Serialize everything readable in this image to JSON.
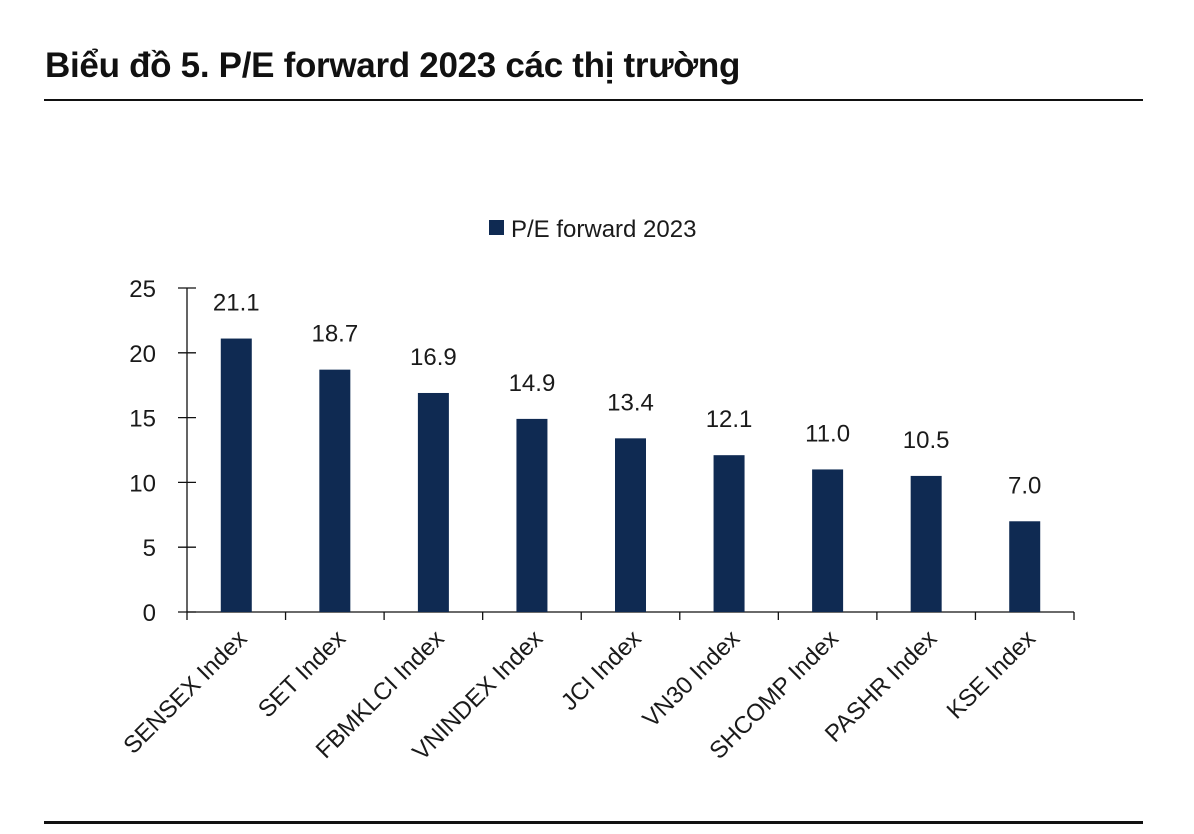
{
  "title": "Biểu đồ 5. P/E forward 2023 các thị trường",
  "chart_data": {
    "type": "bar",
    "title": "",
    "xlabel": "",
    "ylabel": "",
    "categories": [
      "SENSEX Index",
      "SET Index",
      "FBMKLCI Index",
      "VNINDEX Index",
      "JCI Index",
      "VN30 Index",
      "SHCOMP Index",
      "PASHR Index",
      "KSE Index"
    ],
    "series": [
      {
        "name": "P/E forward 2023",
        "values": [
          21.1,
          18.7,
          16.9,
          14.9,
          13.4,
          12.1,
          11.0,
          10.5,
          7.0
        ],
        "color": "#0f2a52"
      }
    ],
    "data_labels": [
      "21.1",
      "18.7",
      "16.9",
      "14.9",
      "13.4",
      "12.1",
      "11.0",
      "10.5",
      "7.0"
    ],
    "ylim": [
      0,
      25
    ],
    "yticks": [
      0,
      5,
      10,
      15,
      20,
      25
    ],
    "grid": false,
    "legend_position": "top-center"
  }
}
